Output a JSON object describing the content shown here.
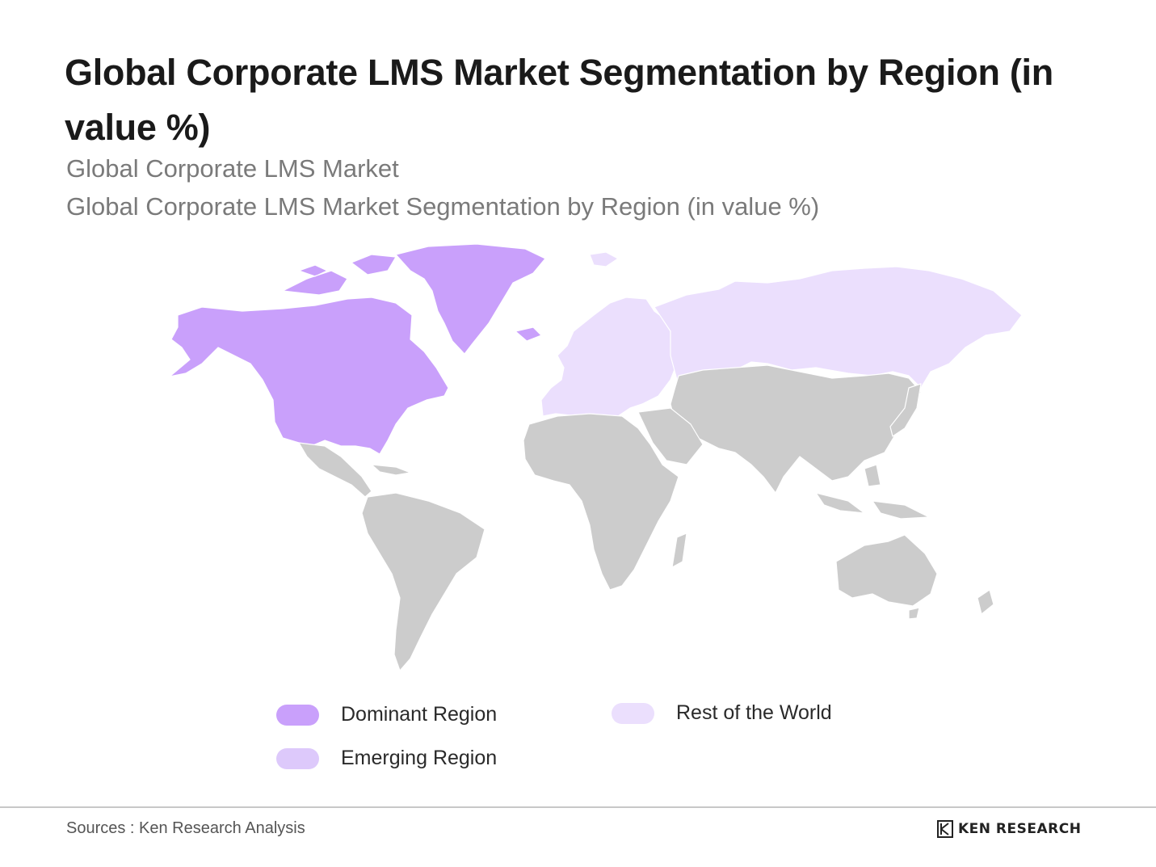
{
  "title": "Global Corporate LMS Market Segmentation by Region (in value %)",
  "subtitle_1": "Global Corporate LMS Market",
  "subtitle_2": "Global Corporate LMS Market Segmentation by Region (in value %)",
  "colors": {
    "dominant": "#c9a0fb",
    "emerging": "#ddc9fb",
    "rest": "#ebdffd",
    "other_land": "#cccccc",
    "border": "#ffffff"
  },
  "regions": [
    {
      "name": "North America",
      "category": "Dominant Region"
    },
    {
      "name": "Greenland",
      "category": "Dominant Region"
    },
    {
      "name": "Europe",
      "category": "Rest of the World"
    },
    {
      "name": "Russia",
      "category": "Rest of the World"
    }
  ],
  "legend": [
    {
      "label": "Dominant Region",
      "color": "#c9a0fb"
    },
    {
      "label": "Emerging Region",
      "color": "#ddc9fb"
    },
    {
      "label": "Rest of the World",
      "color": "#ebdffd"
    }
  ],
  "footer": {
    "sources": "Sources : Ken Research Analysis",
    "brand": "KEN RESEARCH"
  }
}
